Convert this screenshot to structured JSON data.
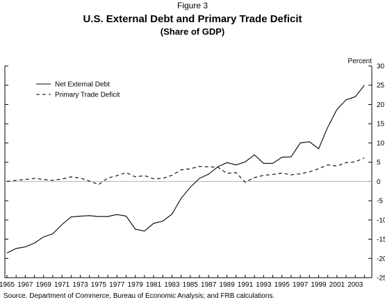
{
  "figure_label": "Figure 3",
  "source": "Source. Department of Commerce, Bureau of Economic Analysis; and FRB calculations.",
  "chart_data": {
    "type": "line",
    "title": "U.S. External Debt and Primary Trade Deficit",
    "subtitle": "(Share of GDP)",
    "ylabel": "Percent",
    "xlabel": "",
    "xlim": [
      1965,
      2004.5
    ],
    "ylim": [
      -25,
      30
    ],
    "y_ticks": [
      30,
      25,
      20,
      15,
      10,
      5,
      0,
      -5,
      -10,
      -15,
      -20,
      -25
    ],
    "x_ticks": [
      "1965",
      "1967",
      "1969",
      "1971",
      "1973",
      "1975",
      "1977",
      "1979",
      "1981",
      "1983",
      "1985",
      "1987",
      "1989",
      "1991",
      "1993",
      "1995",
      "1997",
      "1999",
      "2001",
      "2003"
    ],
    "zero_line": true,
    "grid": false,
    "legend_position": "top-left",
    "series": [
      {
        "name": "Net External Debt",
        "style": "solid",
        "color": "#000000",
        "x": [
          1965,
          1966,
          1967,
          1968,
          1969,
          1970,
          1971,
          1972,
          1973,
          1974,
          1975,
          1976,
          1977,
          1978,
          1979,
          1980,
          1981,
          1982,
          1983,
          1984,
          1985,
          1986,
          1987,
          1988,
          1989,
          1990,
          1991,
          1992,
          1993,
          1994,
          1995,
          1996,
          1997,
          1998,
          1999,
          2000,
          2001,
          2002,
          2003,
          2004
        ],
        "values": [
          -18.6,
          -17.4,
          -17.0,
          -16.0,
          -14.4,
          -13.6,
          -11.2,
          -9.2,
          -9.0,
          -8.9,
          -9.1,
          -9.1,
          -8.6,
          -9.0,
          -12.4,
          -12.9,
          -10.9,
          -10.3,
          -8.5,
          -4.4,
          -1.5,
          0.8,
          1.9,
          3.8,
          4.9,
          4.3,
          5.1,
          6.9,
          4.7,
          4.7,
          6.3,
          6.4,
          10.0,
          10.3,
          8.5,
          14.1,
          18.7,
          21.2,
          22.0,
          25.0
        ]
      },
      {
        "name": "Primary Trade Deficit",
        "style": "dashed",
        "color": "#000000",
        "x": [
          1965,
          1966,
          1967,
          1968,
          1969,
          1970,
          1971,
          1972,
          1973,
          1974,
          1975,
          1976,
          1977,
          1978,
          1979,
          1980,
          1981,
          1982,
          1983,
          1984,
          1985,
          1986,
          1987,
          1988,
          1989,
          1990,
          1991,
          1992,
          1993,
          1994,
          1995,
          1996,
          1997,
          1998,
          1999,
          2000,
          2001,
          2002,
          2003,
          2004
        ],
        "values": [
          0.0,
          0.3,
          0.5,
          0.8,
          0.5,
          0.3,
          0.6,
          1.2,
          0.9,
          0.1,
          -0.8,
          0.9,
          1.5,
          2.3,
          1.2,
          1.5,
          0.7,
          0.8,
          1.6,
          3.0,
          3.3,
          3.9,
          3.8,
          3.7,
          2.1,
          2.3,
          -0.2,
          1.0,
          1.6,
          1.8,
          2.2,
          1.7,
          2.0,
          2.5,
          3.3,
          4.3,
          4.0,
          4.9,
          5.1,
          6.1
        ]
      }
    ]
  }
}
